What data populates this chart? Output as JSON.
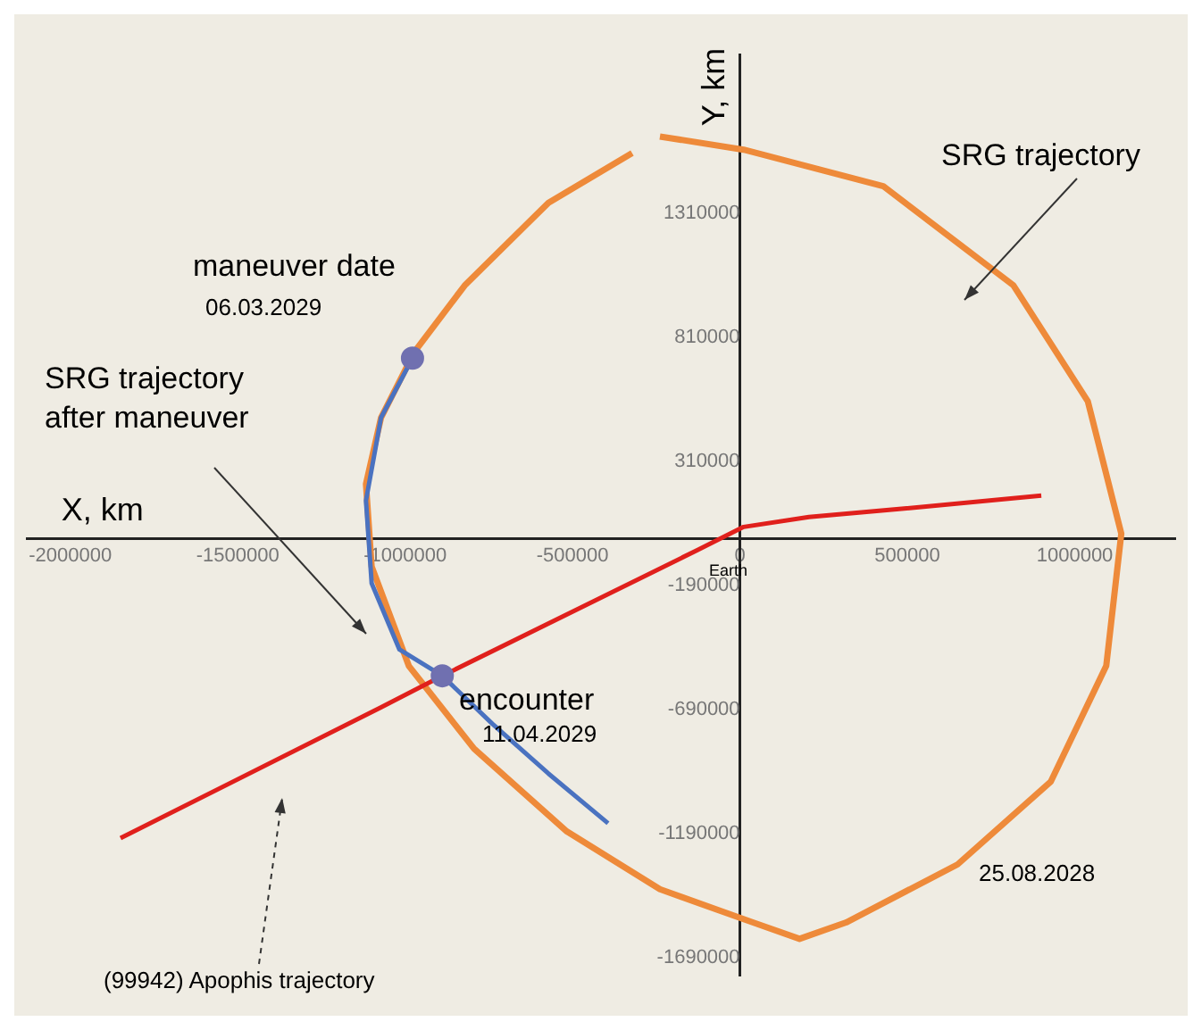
{
  "chart_data": {
    "type": "line",
    "xlabel": "X, km",
    "ylabel": "Y, km",
    "xlim": [
      -2130000,
      1300000
    ],
    "ylim": [
      -1760000,
      1950000
    ],
    "xticks": [
      -2000000,
      -1500000,
      -1000000,
      -500000,
      0,
      500000,
      1000000
    ],
    "yticks": [
      -1690000,
      -1190000,
      -690000,
      -190000,
      310000,
      810000,
      1310000
    ],
    "grid": false,
    "legend": false,
    "marker": "none",
    "line_style": "solid",
    "series": [
      {
        "name": "SRG trajectory",
        "color": "#ee8a3a",
        "x": [
          -239000,
          11000,
          428000,
          817000,
          1039000,
          1139000,
          1094000,
          928000,
          650000,
          317000,
          178000,
          39000,
          -239000,
          -517000,
          -794000,
          -989000,
          -1100000,
          -1117000,
          -1072000,
          -972000,
          -822000,
          -572000,
          -322000
        ],
        "values": [
          1620000,
          1567000,
          1420000,
          1020000,
          553000,
          20000,
          -513000,
          -980000,
          -1313000,
          -1547000,
          -1613000,
          -1547000,
          -1413000,
          -1180000,
          -847000,
          -513000,
          -113000,
          220000,
          487000,
          753000,
          1020000,
          1353000,
          1553000
        ]
      },
      {
        "name": "SRG trajectory after maneuver",
        "color": "#4a72c0",
        "x": [
          -978000,
          -1072000,
          -1117000,
          -1100000,
          -1017000,
          -889000,
          -739000,
          -572000,
          -394000
        ],
        "values": [
          727000,
          487000,
          153000,
          -180000,
          -447000,
          -553000,
          -747000,
          -947000,
          -1147000
        ]
      },
      {
        "name": "(99942) Apophis trajectory",
        "color": "#e0201c",
        "x": [
          -1850000,
          -1072000,
          -889000,
          -128000,
          11000,
          206000,
          483000,
          900000
        ],
        "values": [
          -1207000,
          -680000,
          -553000,
          -47000,
          47000,
          87000,
          120000,
          173000
        ]
      },
      {
        "type": "scatter",
        "marker": "circle",
        "color": "#7070b0",
        "x": [
          -978000,
          -889000
        ],
        "values": [
          727000,
          -553000
        ]
      }
    ],
    "annotations": [
      "maneuver date",
      "06.03.2029",
      "encounter",
      "11.04.2029",
      "25.08.2028",
      "Earth"
    ]
  }
}
